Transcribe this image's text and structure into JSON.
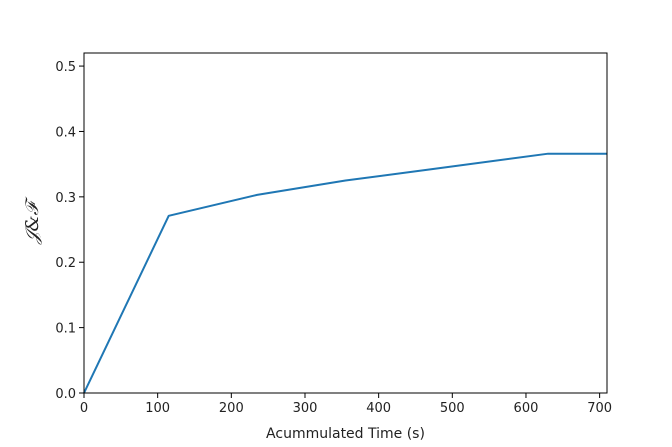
{
  "chart_data": {
    "type": "line",
    "title": "",
    "xlabel": "Acummulated Time (s)",
    "ylabel": "𝒥&ℱ",
    "xlim": [
      0,
      710
    ],
    "ylim": [
      0,
      0.52
    ],
    "x_ticks": [
      0,
      100,
      200,
      300,
      400,
      500,
      600,
      700
    ],
    "y_ticks": [
      0.0,
      0.1,
      0.2,
      0.3,
      0.4,
      0.5
    ],
    "x_tick_labels": [
      "0",
      "100",
      "200",
      "300",
      "400",
      "500",
      "600",
      "700"
    ],
    "y_tick_labels": [
      "0.0",
      "0.1",
      "0.2",
      "0.3",
      "0.4",
      "0.5"
    ],
    "grid": false,
    "series": [
      {
        "color": "#1f77b4",
        "x": [
          0,
          115,
          235,
          355,
          470,
          630,
          710
        ],
        "y": [
          0.0,
          0.271,
          0.303,
          0.325,
          0.342,
          0.366,
          0.366
        ]
      }
    ]
  }
}
